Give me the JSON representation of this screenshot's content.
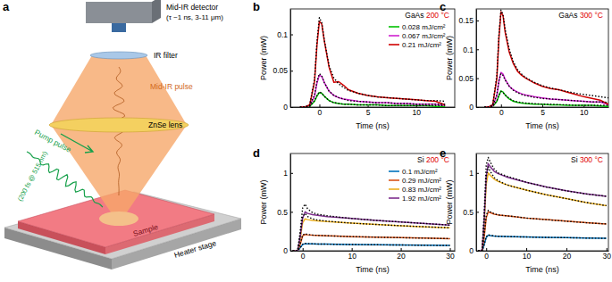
{
  "diagram": {
    "panel_label": "a",
    "detector": "Mid-IR detector",
    "detector_specs": "(τ ~1 ns, 3-11 μm)",
    "filter": "IR filter",
    "pulse": "Mid-IR pulse",
    "lens": "ZnSe lens",
    "pump": "Pump pulse",
    "pump_specs": "(200 fs @ 515 nm)",
    "sample": "Sample",
    "stage": "Heater stage"
  },
  "chart_data": [
    {
      "type": "line",
      "panel_label": "b",
      "annotation": [
        {
          "text": "GaAs",
          "color": "#000000"
        },
        {
          "text": "200 °C",
          "color": "#e00000"
        }
      ],
      "x_label": "Time (ns)",
      "y_label": "Power (mW)",
      "x": [
        -2,
        -1.5,
        -1,
        -0.5,
        -0.25,
        0,
        0.25,
        0.5,
        1,
        1.5,
        2,
        2.5,
        3,
        4,
        5,
        6,
        7,
        8,
        9,
        10,
        11,
        12,
        13
      ],
      "xlim": [
        -3,
        14
      ],
      "xticks": [
        0,
        5,
        10
      ],
      "ylim": [
        0,
        0.135
      ],
      "yticks": [
        0,
        0.05,
        0.1
      ],
      "legend": "upper right",
      "series": [
        {
          "name": "0.028 mJ/cm²",
          "color": "#00c000",
          "line_style": "solid",
          "values": [
            0,
            0,
            0.001,
            0.008,
            0.015,
            0.02,
            0.019,
            0.015,
            0.009,
            0.006,
            0.005,
            0.004,
            0.004,
            0.003,
            0.003,
            0.003,
            0.002,
            0.002,
            0.002,
            0.002,
            0.002,
            0.001,
            0.001
          ]
        },
        {
          "name": "0.067 mJ/cm²",
          "color": "#d020d0",
          "line_style": "solid",
          "values": [
            0,
            0,
            0.002,
            0.015,
            0.033,
            0.044,
            0.042,
            0.034,
            0.022,
            0.016,
            0.013,
            0.011,
            0.01,
            0.008,
            0.007,
            0.006,
            0.006,
            0.005,
            0.005,
            0.004,
            0.004,
            0.004,
            0.002
          ]
        },
        {
          "name": "0.21 mJ/cm²",
          "color": "#d00000",
          "line_style": "solid",
          "values": [
            0,
            0,
            0.003,
            0.035,
            0.085,
            0.118,
            0.114,
            0.092,
            0.055,
            0.034,
            0.035,
            0.03,
            0.024,
            0.019,
            0.016,
            0.014,
            0.013,
            0.012,
            0.011,
            0.01,
            0.009,
            0.008,
            0.003
          ]
        },
        {
          "color": "#000000",
          "line_style": "dotted",
          "values": [
            0,
            0,
            0.001,
            0.009,
            0.016,
            0.021,
            0.019,
            0.015,
            0.009,
            0.006,
            0.005,
            0.004,
            0.004,
            0.003,
            0.003,
            0.003,
            0.002,
            0.002,
            0.002,
            0.002,
            0.002,
            0.002,
            0.002
          ]
        },
        {
          "color": "#000000",
          "line_style": "dotted",
          "values": [
            0,
            0,
            0.002,
            0.017,
            0.035,
            0.046,
            0.043,
            0.034,
            0.022,
            0.016,
            0.013,
            0.011,
            0.009,
            0.008,
            0.007,
            0.006,
            0.006,
            0.005,
            0.005,
            0.004,
            0.004,
            0.004,
            0.004
          ]
        },
        {
          "color": "#000000",
          "line_style": "dotted",
          "values": [
            0,
            0,
            0.003,
            0.038,
            0.09,
            0.123,
            0.116,
            0.093,
            0.057,
            0.04,
            0.032,
            0.027,
            0.023,
            0.019,
            0.016,
            0.014,
            0.013,
            0.012,
            0.011,
            0.01,
            0.009,
            0.009,
            0.008
          ]
        }
      ]
    },
    {
      "type": "line",
      "panel_label": "c",
      "annotation": [
        {
          "text": "GaAs",
          "color": "#000000"
        },
        {
          "text": "300 °C",
          "color": "#e00000"
        }
      ],
      "x_label": "Time (ns)",
      "y_label": "Power (mW)",
      "x": [
        -2,
        -1.5,
        -1,
        -0.5,
        -0.25,
        0,
        0.25,
        0.5,
        1,
        1.5,
        2,
        2.5,
        3,
        4,
        5,
        6,
        7,
        8,
        9,
        10,
        11,
        12,
        13
      ],
      "xlim": [
        -3,
        13
      ],
      "xticks": [
        0,
        5,
        10
      ],
      "ylim": [
        0,
        0.17
      ],
      "yticks": [
        0,
        0.05,
        0.1,
        0.15
      ],
      "series": [
        {
          "color": "#00c000",
          "line_style": "solid",
          "values": [
            0,
            0,
            0.001,
            0.01,
            0.02,
            0.028,
            0.026,
            0.021,
            0.014,
            0.01,
            0.008,
            0.007,
            0.006,
            0.005,
            0.005,
            0.004,
            0.004,
            0.003,
            0.003,
            0.003,
            0.003,
            0.002,
            0.001
          ]
        },
        {
          "color": "#d020d0",
          "line_style": "solid",
          "values": [
            0,
            0,
            0.002,
            0.02,
            0.045,
            0.06,
            0.057,
            0.048,
            0.036,
            0.03,
            0.026,
            0.023,
            0.021,
            0.018,
            0.016,
            0.014,
            0.013,
            0.012,
            0.011,
            0.01,
            0.009,
            0.009,
            0.004
          ]
        },
        {
          "color": "#d00000",
          "line_style": "solid",
          "values": [
            0,
            0,
            0.004,
            0.05,
            0.12,
            0.165,
            0.158,
            0.13,
            0.095,
            0.075,
            0.062,
            0.055,
            0.05,
            0.042,
            0.036,
            0.032,
            0.03,
            0.026,
            0.022,
            0.018,
            0.015,
            0.012,
            0.005
          ]
        },
        {
          "color": "#000000",
          "line_style": "dotted",
          "values": [
            0,
            0,
            0.001,
            0.011,
            0.021,
            0.027,
            0.025,
            0.021,
            0.015,
            0.011,
            0.009,
            0.008,
            0.007,
            0.006,
            0.005,
            0.005,
            0.004,
            0.004,
            0.003,
            0.003,
            0.003,
            0.003,
            0.003
          ]
        },
        {
          "color": "#000000",
          "line_style": "dotted",
          "values": [
            0,
            0,
            0.002,
            0.022,
            0.046,
            0.058,
            0.055,
            0.047,
            0.036,
            0.029,
            0.025,
            0.022,
            0.02,
            0.017,
            0.015,
            0.014,
            0.013,
            0.012,
            0.011,
            0.01,
            0.009,
            0.009,
            0.008
          ]
        },
        {
          "color": "#000000",
          "line_style": "dotted",
          "values": [
            0,
            0,
            0.004,
            0.055,
            0.125,
            0.168,
            0.16,
            0.135,
            0.1,
            0.078,
            0.065,
            0.057,
            0.051,
            0.043,
            0.037,
            0.033,
            0.03,
            0.027,
            0.024,
            0.022,
            0.02,
            0.018,
            0.016
          ]
        }
      ]
    },
    {
      "type": "line",
      "panel_label": "d",
      "annotation": [
        {
          "text": "Si",
          "color": "#000000"
        },
        {
          "text": "200 °C",
          "color": "#e00000"
        }
      ],
      "x_label": "Time (ns)",
      "y_label": "Power (mW)",
      "x": [
        -2,
        -1.5,
        -1,
        -0.5,
        0,
        0.5,
        1,
        2,
        3,
        5,
        7,
        10,
        15,
        20,
        25,
        30
      ],
      "xlim": [
        -2.5,
        31
      ],
      "xticks": [
        0,
        10,
        20,
        30
      ],
      "ylim": [
        0,
        1.25
      ],
      "yticks": [
        0,
        0.5,
        1
      ],
      "legend": "upper right",
      "series": [
        {
          "name": "0.1 mJ/cm²",
          "color": "#0072bd",
          "line_style": "solid",
          "values": [
            0,
            0,
            0,
            0.04,
            0.08,
            0.09,
            0.09,
            0.088,
            0.087,
            0.085,
            0.083,
            0.08,
            0.077,
            0.074,
            0.071,
            0.068
          ]
        },
        {
          "name": "0.29 mJ/cm²",
          "color": "#d95319",
          "line_style": "solid",
          "values": [
            0,
            0,
            0,
            0.08,
            0.19,
            0.21,
            0.205,
            0.2,
            0.197,
            0.192,
            0.188,
            0.182,
            0.175,
            0.168,
            0.162,
            0.156
          ]
        },
        {
          "name": "0.83 mJ/cm²",
          "color": "#edb120",
          "line_style": "solid",
          "values": [
            0,
            0,
            0.005,
            0.15,
            0.36,
            0.41,
            0.4,
            0.39,
            0.385,
            0.375,
            0.368,
            0.355,
            0.338,
            0.322,
            0.308,
            0.295
          ]
        },
        {
          "name": "1.92 mJ/cm²",
          "color": "#7e2f8e",
          "line_style": "solid",
          "values": [
            0,
            0,
            0.005,
            0.18,
            0.42,
            0.5,
            0.48,
            0.465,
            0.455,
            0.44,
            0.43,
            0.415,
            0.39,
            0.37,
            0.35,
            0.33
          ]
        },
        {
          "color": "#000000",
          "line_style": "dotted",
          "values": [
            0,
            0,
            0,
            0.04,
            0.085,
            0.095,
            0.092,
            0.089,
            0.087,
            0.085,
            0.083,
            0.08,
            0.077,
            0.074,
            0.071,
            0.068
          ]
        },
        {
          "color": "#000000",
          "line_style": "dotted",
          "values": [
            0,
            0,
            0,
            0.09,
            0.2,
            0.22,
            0.21,
            0.202,
            0.198,
            0.193,
            0.188,
            0.182,
            0.175,
            0.168,
            0.162,
            0.156
          ]
        },
        {
          "color": "#000000",
          "line_style": "dotted",
          "values": [
            0,
            0,
            0.005,
            0.2,
            0.44,
            0.48,
            0.44,
            0.41,
            0.395,
            0.38,
            0.37,
            0.355,
            0.338,
            0.322,
            0.308,
            0.295
          ]
        },
        {
          "color": "#000000",
          "line_style": "dotted",
          "values": [
            0,
            0,
            0.005,
            0.25,
            0.55,
            0.6,
            0.54,
            0.49,
            0.47,
            0.45,
            0.435,
            0.415,
            0.39,
            0.37,
            0.35,
            0.33
          ]
        }
      ]
    },
    {
      "type": "line",
      "panel_label": "e",
      "annotation": [
        {
          "text": "Si",
          "color": "#000000"
        },
        {
          "text": "300 °C",
          "color": "#e00000"
        }
      ],
      "x_label": "Time (ns)",
      "y_label": "Power (mW)",
      "x": [
        -2,
        -1.5,
        -1,
        -0.5,
        0,
        0.5,
        1,
        2,
        3,
        5,
        7,
        10,
        15,
        20,
        25,
        30
      ],
      "xlim": [
        -2.5,
        30.5
      ],
      "xticks": [
        0,
        10,
        20,
        30
      ],
      "ylim": [
        0,
        1.25
      ],
      "yticks": [
        0,
        0.5,
        1
      ],
      "series": [
        {
          "color": "#0072bd",
          "line_style": "solid",
          "values": [
            0,
            0,
            0,
            0.08,
            0.17,
            0.2,
            0.195,
            0.19,
            0.187,
            0.183,
            0.18,
            0.177,
            0.172,
            0.168,
            0.164,
            0.16
          ]
        },
        {
          "color": "#d95319",
          "line_style": "solid",
          "values": [
            0,
            0,
            0.005,
            0.18,
            0.42,
            0.5,
            0.49,
            0.47,
            0.46,
            0.45,
            0.44,
            0.42,
            0.4,
            0.38,
            0.36,
            0.345
          ]
        },
        {
          "color": "#edb120",
          "line_style": "solid",
          "values": [
            0,
            0,
            0.01,
            0.35,
            0.85,
            1.0,
            0.97,
            0.92,
            0.89,
            0.85,
            0.82,
            0.78,
            0.72,
            0.67,
            0.62,
            0.58
          ]
        },
        {
          "color": "#7e2f8e",
          "line_style": "solid",
          "values": [
            0,
            0,
            0.01,
            0.4,
            0.95,
            1.12,
            1.08,
            1.02,
            0.99,
            0.95,
            0.92,
            0.88,
            0.82,
            0.77,
            0.73,
            0.7
          ]
        },
        {
          "color": "#000000",
          "line_style": "dotted",
          "values": [
            0,
            0,
            0,
            0.08,
            0.18,
            0.205,
            0.198,
            0.19,
            0.187,
            0.183,
            0.18,
            0.177,
            0.172,
            0.168,
            0.164,
            0.16
          ]
        },
        {
          "color": "#000000",
          "line_style": "dotted",
          "values": [
            0,
            0,
            0.005,
            0.2,
            0.45,
            0.52,
            0.5,
            0.475,
            0.462,
            0.45,
            0.44,
            0.42,
            0.4,
            0.38,
            0.36,
            0.345
          ]
        },
        {
          "color": "#000000",
          "line_style": "dotted",
          "values": [
            0,
            0,
            0.01,
            0.4,
            0.95,
            1.08,
            1.02,
            0.94,
            0.9,
            0.85,
            0.82,
            0.78,
            0.72,
            0.67,
            0.62,
            0.58
          ]
        },
        {
          "color": "#000000",
          "line_style": "dotted",
          "values": [
            0,
            0,
            0.01,
            0.5,
            1.1,
            1.2,
            1.14,
            1.05,
            1.0,
            0.96,
            0.93,
            0.88,
            0.82,
            0.77,
            0.73,
            0.7
          ]
        }
      ]
    }
  ]
}
